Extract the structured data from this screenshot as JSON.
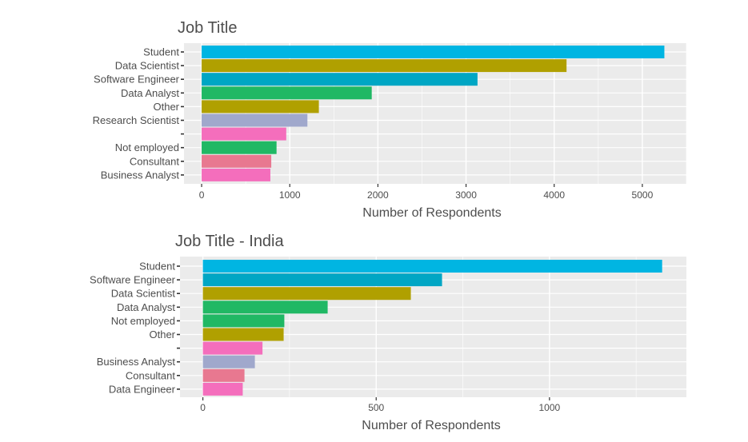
{
  "chart_data": [
    {
      "type": "bar",
      "orientation": "horizontal",
      "title": "Job Title",
      "xlabel": "Number of Respondents",
      "ylabel": "",
      "categories": [
        "Student",
        "Data Scientist",
        "Software Engineer",
        "Data Analyst",
        "Other",
        "Research Scientist",
        "",
        "Not employed",
        "Consultant",
        "Business Analyst"
      ],
      "values": [
        5250,
        4140,
        3130,
        1930,
        1330,
        1200,
        960,
        850,
        790,
        780
      ],
      "colors": [
        "#00B5E2",
        "#B0A000",
        "#00A6C4",
        "#20B864",
        "#B0A000",
        "#A0A8CC",
        "#F46EBC",
        "#20B864",
        "#E87890",
        "#F46EBC"
      ],
      "xlim": [
        -200,
        5500
      ],
      "xticks": [
        0,
        1000,
        2000,
        3000,
        4000,
        5000
      ],
      "grid": true,
      "legend": "none"
    },
    {
      "type": "bar",
      "orientation": "horizontal",
      "title": "Job Title - India",
      "xlabel": "Number of Respondents",
      "ylabel": "",
      "categories": [
        "Student",
        "Software Engineer",
        "Data Scientist",
        "Data Analyst",
        "Not employed",
        "Other",
        "",
        "Business Analyst",
        "Consultant",
        "Data Engineer"
      ],
      "values": [
        1325,
        690,
        600,
        360,
        235,
        233,
        172,
        150,
        120,
        115
      ],
      "colors": [
        "#00B5E2",
        "#00A6C4",
        "#B0A000",
        "#20B864",
        "#20B864",
        "#B0A000",
        "#F46EBC",
        "#A0A8CC",
        "#E87890",
        "#F46EBC"
      ],
      "xlim": [
        -66,
        1395
      ],
      "xticks": [
        0,
        500,
        1000
      ],
      "grid": true,
      "legend": "none"
    }
  ]
}
